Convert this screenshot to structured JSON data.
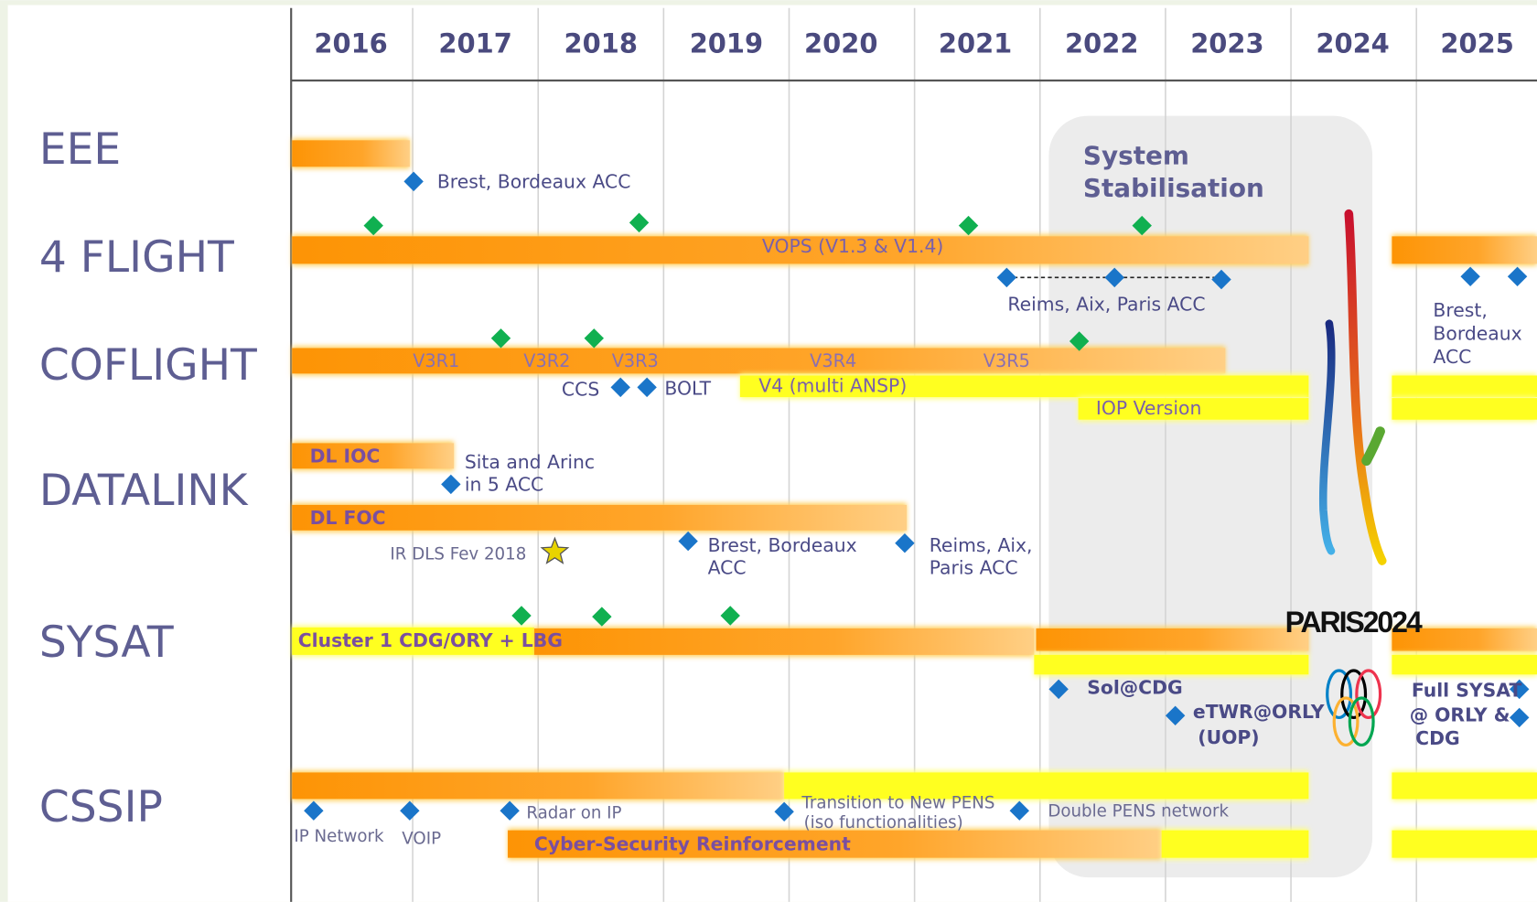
{
  "header": {
    "years": [
      "2016",
      "2017",
      "2018",
      "2019",
      "2020",
      "2021",
      "2022",
      "2023",
      "2024",
      "2025"
    ]
  },
  "phase": [
    "System",
    "Stabilisation"
  ],
  "logo": "PARIS2024",
  "rows": [
    {
      "label": "EEE",
      "milestones": [
        "Brest, Bordeaux ACC"
      ]
    },
    {
      "label": "4 FLIGHT",
      "bars": [
        "VOPS (V1.3 & V1.4)"
      ],
      "milestones": [
        [
          "Reims, Aix, Paris ACC"
        ],
        [
          "Brest,",
          "Bordeaux",
          "ACC"
        ]
      ]
    },
    {
      "label": "COFLIGHT",
      "versions": [
        "V3R1",
        "V3R2",
        "V3R3",
        "V3R4",
        "V3R5"
      ],
      "bars": [
        "V4 (multi ANSP)",
        "IOP Version"
      ],
      "milestones": [
        "CCS",
        "BOLT"
      ]
    },
    {
      "label": "DATALINK",
      "bars": [
        "DL IOC",
        "DL FOC"
      ],
      "milestones": [
        [
          "Sita and Arinc",
          "in 5 ACC"
        ],
        [
          "IR DLS Fev 2018"
        ],
        [
          "Brest, Bordeaux",
          "ACC"
        ],
        [
          "Reims, Aix,",
          "Paris ACC"
        ]
      ]
    },
    {
      "label": "SYSAT",
      "bars": [
        "Cluster 1 CDG/ORY + LBG"
      ],
      "milestones": [
        [
          "Sol@CDG"
        ],
        [
          "eTWR@ORLY",
          "(UOP)"
        ],
        [
          "Full SYSAT",
          "@ ORLY &",
          "CDG"
        ]
      ]
    },
    {
      "label": "CSSIP",
      "bars": [
        "Cyber-Security Reinforcement"
      ],
      "milestones": [
        [
          "IP Network"
        ],
        [
          "VOIP"
        ],
        [
          "Radar on IP"
        ],
        [
          "Transition to New PENS",
          "(iso functionalities)"
        ],
        [
          "Double PENS network"
        ]
      ]
    }
  ]
}
